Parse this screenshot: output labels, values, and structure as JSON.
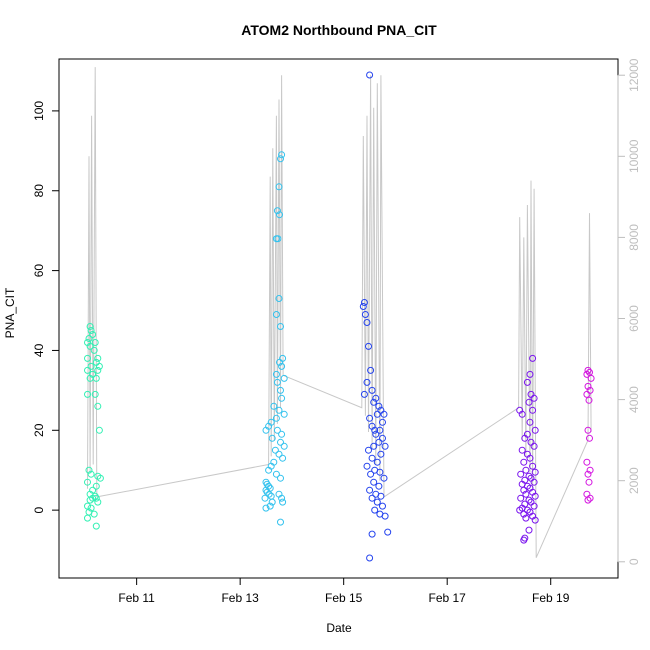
{
  "chart_data": {
    "type": "scatter",
    "title": "ATOM2 Northbound PNA_CIT",
    "xlabel": "Date",
    "ylabel": "PNA_CIT",
    "x_tick_labels": [
      "Feb 11",
      "Feb 13",
      "Feb 15",
      "Feb 17",
      "Feb 19"
    ],
    "x_tick_values": [
      11,
      13,
      15,
      17,
      19
    ],
    "x_unit_note": "day of February",
    "xlim": [
      9.5,
      20.3
    ],
    "ylim": [
      -17,
      113
    ],
    "y_ticks": [
      0,
      20,
      40,
      60,
      80,
      100
    ],
    "y2_ticks": [
      0,
      2000,
      4000,
      6000,
      8000,
      10000,
      12000
    ],
    "y2lim": [
      -400,
      12400
    ],
    "colors": {
      "line": "#c8c8c8",
      "right_axis": "#bebebe",
      "groups": [
        "#33f0b4",
        "#33c2ee",
        "#2443ee",
        "#7a14ee",
        "#d414e0"
      ]
    },
    "series": [
      {
        "values": [
          [
            10.1,
            46
          ],
          [
            10.12,
            45
          ],
          [
            10.15,
            44
          ],
          [
            10.08,
            43
          ],
          [
            10.2,
            42
          ],
          [
            10.05,
            42
          ],
          [
            10.1,
            41
          ],
          [
            10.18,
            40
          ],
          [
            10.25,
            38
          ],
          [
            10.05,
            38
          ],
          [
            10.22,
            37
          ],
          [
            10.12,
            36
          ],
          [
            10.28,
            36
          ],
          [
            10.05,
            35
          ],
          [
            10.25,
            35
          ],
          [
            10.15,
            34
          ],
          [
            10.22,
            33
          ],
          [
            10.1,
            33
          ],
          [
            10.2,
            29
          ],
          [
            10.05,
            29
          ],
          [
            10.25,
            26
          ],
          [
            10.28,
            20
          ],
          [
            10.08,
            10
          ],
          [
            10.12,
            9
          ],
          [
            10.25,
            8.5
          ],
          [
            10.3,
            8
          ],
          [
            10.05,
            7
          ],
          [
            10.22,
            6
          ],
          [
            10.15,
            5
          ],
          [
            10.1,
            4
          ],
          [
            10.2,
            3.5
          ],
          [
            10.15,
            3
          ],
          [
            10.22,
            3
          ],
          [
            10.1,
            2.5
          ],
          [
            10.25,
            2
          ],
          [
            10.05,
            1
          ],
          [
            10.12,
            0.5
          ],
          [
            10.08,
            -0.5
          ],
          [
            10.18,
            -1
          ],
          [
            10.05,
            -2
          ],
          [
            10.22,
            -4
          ]
        ]
      },
      {
        "values": [
          [
            13.8,
            89
          ],
          [
            13.78,
            88
          ],
          [
            13.75,
            81
          ],
          [
            13.72,
            75
          ],
          [
            13.76,
            74
          ],
          [
            13.7,
            68
          ],
          [
            13.73,
            68
          ],
          [
            13.75,
            53
          ],
          [
            13.7,
            49
          ],
          [
            13.78,
            46
          ],
          [
            13.82,
            38
          ],
          [
            13.76,
            37
          ],
          [
            13.8,
            36
          ],
          [
            13.7,
            34
          ],
          [
            13.85,
            33
          ],
          [
            13.72,
            32
          ],
          [
            13.78,
            30
          ],
          [
            13.8,
            28
          ],
          [
            13.65,
            26
          ],
          [
            13.75,
            25
          ],
          [
            13.85,
            24
          ],
          [
            13.7,
            23
          ],
          [
            13.6,
            22
          ],
          [
            13.55,
            21
          ],
          [
            13.5,
            20
          ],
          [
            13.72,
            20
          ],
          [
            13.8,
            19
          ],
          [
            13.62,
            18
          ],
          [
            13.78,
            17
          ],
          [
            13.85,
            16
          ],
          [
            13.68,
            15
          ],
          [
            13.75,
            14
          ],
          [
            13.82,
            13
          ],
          [
            13.65,
            12
          ],
          [
            13.6,
            11
          ],
          [
            13.55,
            10
          ],
          [
            13.7,
            9
          ],
          [
            13.78,
            8
          ],
          [
            13.5,
            7
          ],
          [
            13.52,
            6.5
          ],
          [
            13.55,
            6
          ],
          [
            13.58,
            5.5
          ],
          [
            13.5,
            5
          ],
          [
            13.52,
            4.5
          ],
          [
            13.56,
            4
          ],
          [
            13.6,
            3.5
          ],
          [
            13.48,
            3
          ],
          [
            13.75,
            4
          ],
          [
            13.8,
            3
          ],
          [
            13.82,
            2
          ],
          [
            13.62,
            2
          ],
          [
            13.58,
            1
          ],
          [
            13.5,
            0.5
          ],
          [
            13.78,
            -3
          ]
        ]
      },
      {
        "values": [
          [
            15.5,
            109
          ],
          [
            15.4,
            52
          ],
          [
            15.38,
            51
          ],
          [
            15.42,
            49
          ],
          [
            15.45,
            47
          ],
          [
            15.48,
            41
          ],
          [
            15.52,
            35
          ],
          [
            15.45,
            32
          ],
          [
            15.55,
            30
          ],
          [
            15.4,
            29
          ],
          [
            15.62,
            28
          ],
          [
            15.58,
            27
          ],
          [
            15.68,
            26
          ],
          [
            15.72,
            25
          ],
          [
            15.65,
            24
          ],
          [
            15.78,
            24
          ],
          [
            15.5,
            23
          ],
          [
            15.75,
            22
          ],
          [
            15.55,
            21
          ],
          [
            15.6,
            20
          ],
          [
            15.7,
            20
          ],
          [
            15.62,
            19
          ],
          [
            15.75,
            18
          ],
          [
            15.68,
            17
          ],
          [
            15.58,
            16
          ],
          [
            15.8,
            16
          ],
          [
            15.48,
            15
          ],
          [
            15.72,
            14
          ],
          [
            15.55,
            13
          ],
          [
            15.65,
            12
          ],
          [
            15.45,
            11
          ],
          [
            15.6,
            10
          ],
          [
            15.7,
            9.5
          ],
          [
            15.52,
            9
          ],
          [
            15.78,
            8
          ],
          [
            15.58,
            7
          ],
          [
            15.68,
            6
          ],
          [
            15.5,
            5
          ],
          [
            15.62,
            4
          ],
          [
            15.72,
            3.5
          ],
          [
            15.55,
            3
          ],
          [
            15.65,
            2
          ],
          [
            15.75,
            1
          ],
          [
            15.6,
            0
          ],
          [
            15.7,
            -1
          ],
          [
            15.8,
            -1.5
          ],
          [
            15.55,
            -6
          ],
          [
            15.85,
            -5.5
          ],
          [
            15.5,
            -12
          ]
        ]
      },
      {
        "values": [
          [
            18.65,
            38
          ],
          [
            18.6,
            34
          ],
          [
            18.55,
            32
          ],
          [
            18.62,
            29
          ],
          [
            18.68,
            28
          ],
          [
            18.58,
            27
          ],
          [
            18.65,
            25
          ],
          [
            18.4,
            25
          ],
          [
            18.45,
            24
          ],
          [
            18.6,
            22
          ],
          [
            18.7,
            20
          ],
          [
            18.55,
            19
          ],
          [
            18.5,
            18
          ],
          [
            18.62,
            17
          ],
          [
            18.68,
            16
          ],
          [
            18.45,
            15
          ],
          [
            18.55,
            14
          ],
          [
            18.6,
            13
          ],
          [
            18.48,
            12
          ],
          [
            18.65,
            11
          ],
          [
            18.52,
            10
          ],
          [
            18.7,
            9.5
          ],
          [
            18.42,
            9
          ],
          [
            18.58,
            8.5
          ],
          [
            18.62,
            8
          ],
          [
            18.5,
            7.5
          ],
          [
            18.68,
            7
          ],
          [
            18.45,
            6.5
          ],
          [
            18.55,
            6
          ],
          [
            18.6,
            5.5
          ],
          [
            18.48,
            5
          ],
          [
            18.65,
            4.5
          ],
          [
            18.52,
            4
          ],
          [
            18.7,
            3.5
          ],
          [
            18.42,
            3
          ],
          [
            18.58,
            2.5
          ],
          [
            18.62,
            2
          ],
          [
            18.5,
            1.5
          ],
          [
            18.68,
            1
          ],
          [
            18.45,
            0.5
          ],
          [
            18.55,
            0
          ],
          [
            18.6,
            -0.5
          ],
          [
            18.48,
            -1
          ],
          [
            18.65,
            -1.5
          ],
          [
            18.52,
            -2
          ],
          [
            18.7,
            -2.5
          ],
          [
            18.4,
            0
          ],
          [
            18.58,
            -5
          ],
          [
            18.5,
            -7
          ],
          [
            18.48,
            -7.5
          ]
        ]
      },
      {
        "values": [
          [
            19.72,
            35
          ],
          [
            19.75,
            34.5
          ],
          [
            19.7,
            34
          ],
          [
            19.78,
            33
          ],
          [
            19.72,
            31
          ],
          [
            19.76,
            30
          ],
          [
            19.7,
            29
          ],
          [
            19.74,
            27.5
          ],
          [
            19.72,
            20
          ],
          [
            19.75,
            18
          ],
          [
            19.7,
            12
          ],
          [
            19.76,
            10
          ],
          [
            19.72,
            9
          ],
          [
            19.74,
            7
          ],
          [
            19.7,
            4
          ],
          [
            19.76,
            3
          ],
          [
            19.72,
            2.5
          ]
        ]
      }
    ],
    "secondary_series": {
      "axis": "right",
      "values": [
        [
          10.05,
          1800
        ],
        [
          10.08,
          10000
        ],
        [
          10.1,
          2200
        ],
        [
          10.13,
          11000
        ],
        [
          10.16,
          2400
        ],
        [
          10.2,
          12200
        ],
        [
          10.23,
          1600
        ],
        [
          13.55,
          2400
        ],
        [
          13.58,
          9500
        ],
        [
          13.6,
          2600
        ],
        [
          13.63,
          10200
        ],
        [
          13.66,
          3000
        ],
        [
          13.7,
          11000
        ],
        [
          13.72,
          3400
        ],
        [
          13.75,
          11400
        ],
        [
          13.78,
          3800
        ],
        [
          13.8,
          12000
        ],
        [
          13.83,
          4600
        ],
        [
          15.35,
          3800
        ],
        [
          15.38,
          10500
        ],
        [
          15.42,
          3600
        ],
        [
          15.45,
          11000
        ],
        [
          15.48,
          3200
        ],
        [
          15.52,
          12000
        ],
        [
          15.55,
          2800
        ],
        [
          15.58,
          11200
        ],
        [
          15.62,
          2400
        ],
        [
          15.65,
          11800
        ],
        [
          15.7,
          2000
        ],
        [
          15.72,
          12000
        ],
        [
          15.78,
          1600
        ],
        [
          18.38,
          3800
        ],
        [
          18.4,
          8500
        ],
        [
          18.45,
          3000
        ],
        [
          18.48,
          8000
        ],
        [
          18.52,
          2600
        ],
        [
          18.55,
          8800
        ],
        [
          18.6,
          2200
        ],
        [
          18.62,
          9400
        ],
        [
          18.65,
          1800
        ],
        [
          18.68,
          9200
        ],
        [
          18.72,
          100
        ],
        [
          19.72,
          3000
        ],
        [
          19.75,
          8600
        ],
        [
          19.78,
          3200
        ]
      ]
    }
  }
}
